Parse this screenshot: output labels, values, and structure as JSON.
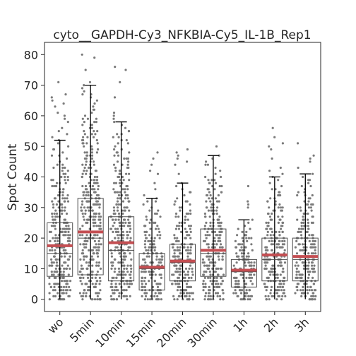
{
  "chart_data": {
    "type": "box",
    "title": "cyto__GAPDH-Cy3_NFKBIA-Cy5_IL-1B_Rep1",
    "xlabel": "",
    "ylabel": "Spot Count",
    "ylim": [
      -4,
      84
    ],
    "yticks": [
      0,
      10,
      20,
      30,
      40,
      50,
      60,
      70,
      80
    ],
    "grid": false,
    "categories": [
      "wo",
      "5min",
      "10min",
      "15min",
      "20min",
      "30min",
      "1h",
      "2h",
      "3h"
    ],
    "series": [
      {
        "category": "wo",
        "q1": 7.5,
        "median": 15,
        "mean": 17.5,
        "q3": 25,
        "whisker_low": 0,
        "whisker_high": 52,
        "max": 71
      },
      {
        "category": "5min",
        "q1": 8,
        "median": 20,
        "mean": 22,
        "q3": 33,
        "whisker_low": 0,
        "whisker_high": 70,
        "max": 80
      },
      {
        "category": "10min",
        "q1": 6,
        "median": 16,
        "mean": 18.5,
        "q3": 27,
        "whisker_low": 0,
        "whisker_high": 58,
        "max": 76
      },
      {
        "category": "15min",
        "q1": 3,
        "median": 10,
        "mean": 10.5,
        "q3": 15,
        "whisker_low": 0,
        "whisker_high": 33,
        "max": 48
      },
      {
        "category": "20min",
        "q1": 6,
        "median": 12,
        "mean": 12.5,
        "q3": 18,
        "whisker_low": 0,
        "whisker_high": 38,
        "max": 49
      },
      {
        "category": "30min",
        "q1": 7.5,
        "median": 15,
        "mean": 16,
        "q3": 23,
        "whisker_low": 0,
        "whisker_high": 47,
        "max": 50
      },
      {
        "category": "1h",
        "q1": 4,
        "median": 9,
        "mean": 9.5,
        "q3": 13,
        "whisker_low": 0,
        "whisker_high": 26,
        "max": 37
      },
      {
        "category": "2h",
        "q1": 6,
        "median": 13,
        "mean": 14.5,
        "q3": 20,
        "whisker_low": 0,
        "whisker_high": 40,
        "max": 56
      },
      {
        "category": "3h",
        "q1": 6,
        "median": 13,
        "mean": 14,
        "q3": 20,
        "whisker_low": 0,
        "whisker_high": 41,
        "max": 51
      }
    ],
    "colors": {
      "points": "#7a7a7a",
      "mean_line": "#c44e52",
      "box_edge": "#4d4d4d",
      "whisker": "#000000"
    }
  }
}
